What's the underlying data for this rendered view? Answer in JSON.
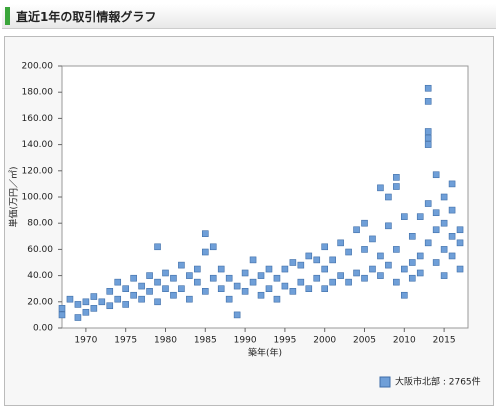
{
  "header": {
    "title": "直近1年の取引情報グラフ"
  },
  "chart_data": {
    "type": "scatter",
    "x_label": "築年(年)",
    "y_label": "単価(万円／㎡)",
    "xlim": [
      1967,
      2018
    ],
    "ylim": [
      0,
      200
    ],
    "xticks": [
      1970,
      1975,
      1980,
      1985,
      1990,
      1995,
      2000,
      2005,
      2010,
      2015
    ],
    "yticks": [
      {
        "value": 0,
        "label": "0.00"
      },
      {
        "value": 20,
        "label": "20.00"
      },
      {
        "value": 40,
        "label": "40.00"
      },
      {
        "value": 60,
        "label": "60.00"
      },
      {
        "value": 80,
        "label": "80.00"
      },
      {
        "value": 100,
        "label": "100.00"
      },
      {
        "value": 120,
        "label": "120.00"
      },
      {
        "value": 140,
        "label": "140.00"
      },
      {
        "value": 160,
        "label": "160.00"
      },
      {
        "value": 180,
        "label": "180.00"
      },
      {
        "value": 200,
        "label": "200.00"
      }
    ],
    "legend": "bottom-right",
    "series": [
      {
        "name": "大阪市北部 : 2765件",
        "color": "#6f9fd8",
        "x": [
          1967,
          1967,
          1968,
          1969,
          1969,
          1970,
          1970,
          1971,
          1971,
          1972,
          1973,
          1973,
          1974,
          1974,
          1975,
          1975,
          1976,
          1976,
          1977,
          1977,
          1978,
          1978,
          1979,
          1979,
          1979,
          1980,
          1980,
          1981,
          1981,
          1982,
          1982,
          1983,
          1983,
          1984,
          1984,
          1985,
          1985,
          1985,
          1986,
          1986,
          1987,
          1987,
          1988,
          1988,
          1989,
          1989,
          1990,
          1990,
          1991,
          1991,
          1992,
          1992,
          1993,
          1993,
          1994,
          1994,
          1995,
          1995,
          1996,
          1996,
          1997,
          1997,
          1998,
          1998,
          1999,
          1999,
          2000,
          2000,
          2000,
          2001,
          2001,
          2002,
          2002,
          2003,
          2003,
          2004,
          2004,
          2005,
          2005,
          2005,
          2006,
          2006,
          2007,
          2007,
          2007,
          2008,
          2008,
          2008,
          2009,
          2009,
          2009,
          2009,
          2010,
          2010,
          2010,
          2011,
          2011,
          2011,
          2012,
          2012,
          2012,
          2013,
          2013,
          2013,
          2013,
          2013,
          2013,
          2013,
          2014,
          2014,
          2014,
          2014,
          2015,
          2015,
          2015,
          2015,
          2016,
          2016,
          2016,
          2016,
          2017,
          2017,
          2017
        ],
        "values": [
          15,
          10,
          22,
          8,
          18,
          20,
          12,
          24,
          15,
          20,
          17,
          28,
          22,
          35,
          18,
          30,
          25,
          38,
          22,
          32,
          28,
          40,
          62,
          35,
          20,
          30,
          42,
          25,
          38,
          48,
          30,
          22,
          40,
          35,
          45,
          28,
          58,
          72,
          62,
          38,
          30,
          45,
          22,
          38,
          10,
          32,
          28,
          42,
          52,
          35,
          25,
          40,
          30,
          45,
          22,
          38,
          32,
          45,
          28,
          50,
          35,
          48,
          30,
          55,
          38,
          52,
          30,
          45,
          62,
          35,
          52,
          40,
          65,
          35,
          58,
          42,
          75,
          38,
          60,
          80,
          45,
          68,
          40,
          107,
          55,
          48,
          78,
          100,
          35,
          115,
          60,
          108,
          45,
          85,
          25,
          50,
          70,
          38,
          55,
          85,
          42,
          183,
          173,
          150,
          145,
          140,
          65,
          95,
          117,
          75,
          50,
          88,
          60,
          100,
          40,
          80,
          110,
          70,
          55,
          90,
          65,
          45,
          75
        ]
      }
    ]
  }
}
